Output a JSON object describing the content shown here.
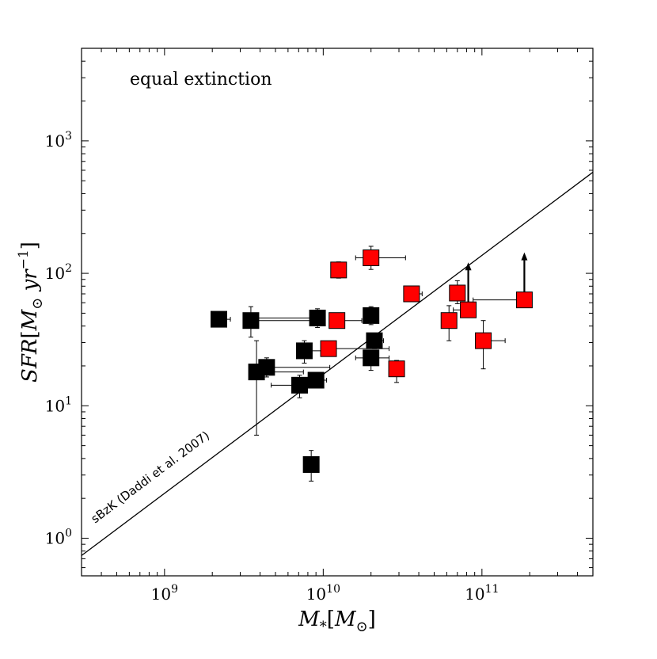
{
  "chart_data": {
    "type": "scatter",
    "title": "",
    "annotation": "equal extinction",
    "xlabel": "M_*[M_⊙]",
    "ylabel": "SFR[M_⊙ yr^-1]",
    "xlabel_parts": {
      "main": "M",
      "sub": "*",
      "bracket_open": "[",
      "inner": "M",
      "inner_sub": "⊙",
      "bracket_close": "]"
    },
    "ylabel_parts": {
      "main": "SFR",
      "bracket_open": "[",
      "inner": "M",
      "inner_sub": "⊙",
      "unit": " yr",
      "unit_exp": "−1",
      "bracket_close": "]"
    },
    "xscale": "log",
    "yscale": "log",
    "xlim": [
      300000000.0,
      500000000000.0
    ],
    "ylim": [
      0.52,
      5000
    ],
    "x_ticks": [
      {
        "value": 1000000000.0,
        "base": "10",
        "exp": "9"
      },
      {
        "value": 10000000000.0,
        "base": "10",
        "exp": "10"
      },
      {
        "value": 100000000000.0,
        "base": "10",
        "exp": "11"
      }
    ],
    "y_ticks": [
      {
        "value": 1,
        "base": "10",
        "exp": "0"
      },
      {
        "value": 10,
        "base": "10",
        "exp": "1"
      },
      {
        "value": 100,
        "base": "10",
        "exp": "2"
      },
      {
        "value": 1000,
        "base": "10",
        "exp": "3"
      }
    ],
    "reference_line": {
      "label": "sBzK (Daddi et al. 2007)",
      "x": [
        300000000.0,
        500000000000.0
      ],
      "y": [
        0.74,
        580
      ]
    },
    "series": [
      {
        "name": "black",
        "color": "#000000",
        "points": [
          {
            "x": 2200000000.0,
            "y": 45,
            "x_lo": 2000000000.0,
            "x_hi": 2600000000.0
          },
          {
            "x": 3500000000.0,
            "y": 44,
            "x_lo": 3300000000.0,
            "x_hi": 8500000000.0,
            "y_lo": 33,
            "y_hi": 56
          },
          {
            "x": 9200000000.0,
            "y": 46,
            "x_lo": 3700000000.0,
            "x_hi": 9800000000.0,
            "y_lo": 39,
            "y_hi": 54
          },
          {
            "x": 7600000000.0,
            "y": 26,
            "x_lo": 7000000000.0,
            "x_hi": 11000000000.0,
            "y_lo": 21,
            "y_hi": 31
          },
          {
            "x": 3800000000.0,
            "y": 18,
            "x_lo": 3500000000.0,
            "x_hi": 7500000000.0,
            "y_lo": 6,
            "y_hi": 31
          },
          {
            "x": 4400000000.0,
            "y": 19.5,
            "x_lo": 3800000000.0,
            "x_hi": 11000000000.0,
            "y_lo": 16.5,
            "y_hi": 23
          },
          {
            "x": 7100000000.0,
            "y": 14.3,
            "x_lo": 4700000000.0,
            "x_hi": 8200000000.0,
            "y_lo": 11.5,
            "y_hi": 17
          },
          {
            "x": 9000000000.0,
            "y": 15.6,
            "x_lo": 8200000000.0,
            "x_hi": 10500000000.0,
            "y_lo": 14,
            "y_hi": 17.5
          },
          {
            "x": 8400000000.0,
            "y": 3.6,
            "y_lo": 2.7,
            "y_hi": 4.6
          },
          {
            "x": 20000000000.0,
            "y": 48,
            "x_lo": 18000000000.0,
            "x_hi": 22000000000.0,
            "y_lo": 41,
            "y_hi": 56
          },
          {
            "x": 21000000000.0,
            "y": 31,
            "x_lo": 19000000000.0,
            "x_hi": 24000000000.0,
            "y_lo": 27,
            "y_hi": 35
          },
          {
            "x": 20000000000.0,
            "y": 23,
            "x_lo": 16000000000.0,
            "x_hi": 26000000000.0,
            "y_lo": 18.5,
            "y_hi": 26
          }
        ]
      },
      {
        "name": "red",
        "color": "#ff0000",
        "points": [
          {
            "x": 12500000000.0,
            "y": 106,
            "x_lo": 12000000000.0,
            "x_hi": 13500000000.0,
            "y_lo": 92,
            "y_hi": 122
          },
          {
            "x": 20000000000.0,
            "y": 131,
            "x_lo": 16000000000.0,
            "x_hi": 33000000000.0,
            "y_lo": 107,
            "y_hi": 160
          },
          {
            "x": 12200000000.0,
            "y": 44,
            "x_lo": 11500000000.0,
            "x_hi": 17500000000.0
          },
          {
            "x": 10800000000.0,
            "y": 27,
            "x_lo": 10000000000.0,
            "x_hi": 26000000000.0
          },
          {
            "x": 36000000000.0,
            "y": 70,
            "x_lo": 33000000000.0,
            "x_hi": 42000000000.0,
            "y_lo": 61,
            "y_hi": 78
          },
          {
            "x": 29000000000.0,
            "y": 19,
            "x_lo": 27000000000.0,
            "x_hi": 32000000000.0,
            "y_lo": 15,
            "y_hi": 22
          },
          {
            "x": 62000000000.0,
            "y": 44,
            "x_lo": 57000000000.0,
            "x_hi": 68000000000.0,
            "y_lo": 31,
            "y_hi": 57
          },
          {
            "x": 70000000000.0,
            "y": 71,
            "x_lo": 64000000000.0,
            "x_hi": 77000000000.0,
            "y_lo": 59,
            "y_hi": 88
          },
          {
            "x": 82000000000.0,
            "y": 53,
            "x_lo": 66000000000.0,
            "x_hi": 89000000000.0,
            "lower_limit": true
          },
          {
            "x": 102000000000.0,
            "y": 31,
            "x_lo": 93000000000.0,
            "x_hi": 140000000000.0,
            "y_lo": 19,
            "y_hi": 44
          },
          {
            "x": 185000000000.0,
            "y": 63,
            "x_lo": 88000000000.0,
            "x_hi": 190000000000.0,
            "lower_limit": true
          }
        ]
      }
    ]
  }
}
